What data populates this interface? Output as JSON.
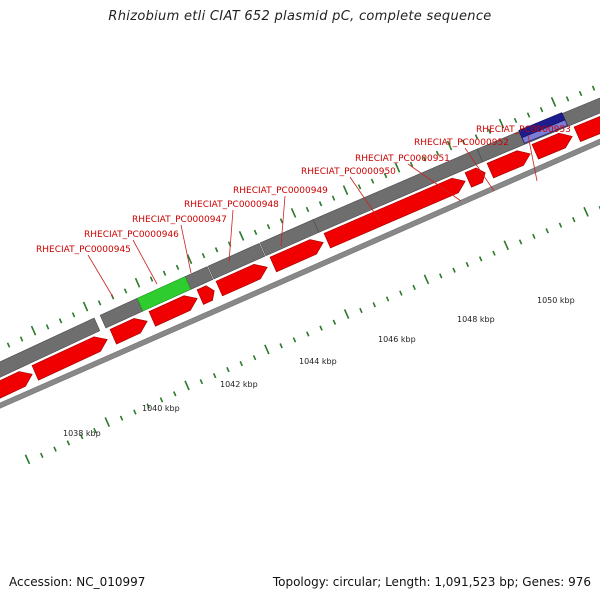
{
  "title": "Rhizobium etli CIAT 652 plasmid pC, complete sequence",
  "footer": {
    "accession": "Accession: NC_010997",
    "summary": "Topology: circular; Length: 1,091,523 bp; Genes: 976"
  },
  "colors": {
    "cds_forward": "#f00000",
    "gene_track": "#6e6e6e",
    "highlight_green": "#2ecc2e",
    "highlight_blue": "#1c1c8c",
    "tick_green": "#2a7a2a",
    "label_red": "#cc0000",
    "backbone": "#888888"
  },
  "scale_labels": [
    {
      "kbp": 1038,
      "text": "1038 kbp"
    },
    {
      "kbp": 1040,
      "text": "1040 kbp"
    },
    {
      "kbp": 1042,
      "text": "1042 kbp"
    },
    {
      "kbp": 1044,
      "text": "1044 kbp"
    },
    {
      "kbp": 1046,
      "text": "1046 kbp"
    },
    {
      "kbp": 1048,
      "text": "1048 kbp"
    },
    {
      "kbp": 1050,
      "text": "1050 kbp"
    }
  ],
  "gene_labels": [
    {
      "text": "RHECIAT_PC0000945"
    },
    {
      "text": "RHECIAT_PC0000946"
    },
    {
      "text": "RHECIAT_PC0000947"
    },
    {
      "text": "RHECIAT_PC0000948"
    },
    {
      "text": "RHECIAT_PC0000949"
    },
    {
      "text": "RHECIAT_PC0000950"
    },
    {
      "text": "RHECIAT_PC0000951"
    },
    {
      "text": "RHECIAT_PC0000952"
    },
    {
      "text": "RHECIAT_PC0000953"
    }
  ]
}
